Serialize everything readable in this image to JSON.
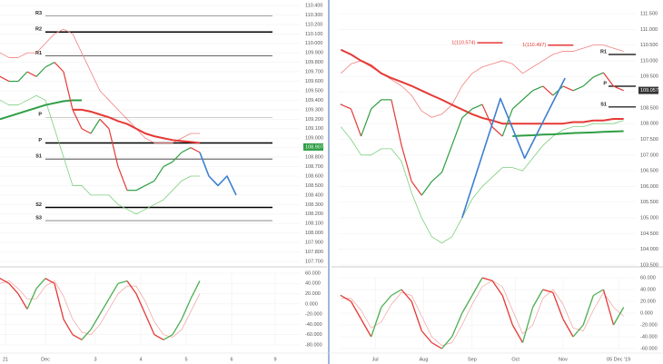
{
  "chart_data": [
    {
      "type": "line",
      "grid": true,
      "xlim": [
        0,
        33
      ],
      "ylim": [
        107.7,
        110.4
      ],
      "yticks": [
        {
          "value": 110.4,
          "label": "110.400"
        },
        {
          "value": 110.3,
          "label": "110.300"
        },
        {
          "value": 110.2,
          "label": "110.200"
        },
        {
          "value": 110.1,
          "label": "110.100"
        },
        {
          "value": 110.0,
          "label": "110.000"
        },
        {
          "value": 109.9,
          "label": "109.900"
        },
        {
          "value": 109.8,
          "label": "109.800"
        },
        {
          "value": 109.7,
          "label": "109.700"
        },
        {
          "value": 109.6,
          "label": "109.600"
        },
        {
          "value": 109.5,
          "label": "109.500"
        },
        {
          "value": 109.4,
          "label": "109.400"
        },
        {
          "value": 109.3,
          "label": "109.300"
        },
        {
          "value": 109.2,
          "label": "109.200"
        },
        {
          "value": 109.1,
          "label": "109.100"
        },
        {
          "value": 109.0,
          "label": "109.000"
        },
        {
          "value": 108.9,
          "label": "108.900"
        },
        {
          "value": 108.8,
          "label": "108.800"
        },
        {
          "value": 108.7,
          "label": "108.700"
        },
        {
          "value": 108.6,
          "label": "108.600"
        },
        {
          "value": 108.5,
          "label": "108.500"
        },
        {
          "value": 108.4,
          "label": "108.400"
        },
        {
          "value": 108.3,
          "label": "108.300"
        },
        {
          "value": 108.2,
          "label": "108.200"
        },
        {
          "value": 108.1,
          "label": "108.100"
        },
        {
          "value": 108.0,
          "label": "108.000"
        },
        {
          "value": 107.9,
          "label": "107.900"
        },
        {
          "value": 107.8,
          "label": "107.800"
        },
        {
          "value": 107.7,
          "label": "107.700"
        }
      ],
      "levels": [
        {
          "label": "R3",
          "value": 110.29,
          "color": "#444",
          "width": 0.6
        },
        {
          "label": "R2",
          "value": 110.12,
          "color": "#000",
          "width": 1.5
        },
        {
          "label": "R1",
          "value": 109.87,
          "color": "#333",
          "width": 0.8
        },
        {
          "label": "P",
          "value": 109.22,
          "color": "#999",
          "width": 0.6
        },
        {
          "label": "P",
          "value": 108.95,
          "color": "#000",
          "width": 1.5
        },
        {
          "label": "S1",
          "value": 108.78,
          "color": "#333",
          "width": 0.8
        },
        {
          "label": "S2",
          "value": 108.27,
          "color": "#000",
          "width": 1.5
        },
        {
          "label": "S3",
          "value": 108.13,
          "color": "#444",
          "width": 0.6
        }
      ],
      "series": [
        {
          "color": "#f08080",
          "width": 0.8,
          "values": [
            109.9,
            109.85,
            109.85,
            109.9,
            109.9,
            110.0,
            110.1,
            110.15,
            110.1,
            109.9,
            109.7,
            109.5,
            109.4,
            109.3,
            109.2,
            109.1,
            109.0,
            108.95,
            108.95,
            108.95,
            109.0,
            109.05,
            109.05
          ]
        },
        {
          "color": "#7ccf7c",
          "width": 0.8,
          "values": [
            109.4,
            109.35,
            109.35,
            109.4,
            109.45,
            109.4,
            109.1,
            108.8,
            108.5,
            108.5,
            108.4,
            108.4,
            108.4,
            108.3,
            108.25,
            108.2,
            108.25,
            108.3,
            108.35,
            108.45,
            108.55,
            108.6,
            108.6
          ]
        },
        {
          "color": "#e53935",
          "width": 2,
          "values": [
            null,
            null,
            null,
            null,
            null,
            null,
            null,
            null,
            109.3,
            109.3,
            109.28,
            109.25,
            109.22,
            109.18,
            109.15,
            109.1,
            109.05,
            109.02,
            109.0,
            108.98,
            108.97,
            108.96,
            108.95
          ]
        },
        {
          "color": "#2e9e44",
          "width": 2,
          "values": [
            109.2,
            109.23,
            109.26,
            109.29,
            109.32,
            109.35,
            109.37,
            109.39,
            109.4,
            109.4
          ]
        },
        {
          "style": "updown",
          "up": "#2e9e44",
          "down": "#e53935",
          "width": 1.2,
          "values": [
            109.65,
            109.6,
            109.6,
            109.7,
            109.65,
            109.75,
            109.8,
            109.7,
            109.3,
            109.1,
            109.05,
            109.2,
            109.1,
            108.7,
            108.45,
            108.45,
            108.5,
            108.55,
            108.7,
            108.75,
            108.85,
            108.9,
            108.85
          ]
        },
        {
          "color": "#3d7fd0",
          "width": 1.6,
          "values": [
            null,
            null,
            null,
            null,
            null,
            null,
            null,
            null,
            null,
            null,
            null,
            null,
            null,
            null,
            null,
            null,
            null,
            null,
            null,
            null,
            null,
            null,
            108.85,
            108.6,
            108.5,
            108.6,
            108.4
          ]
        }
      ],
      "tags": [
        {
          "label": "108.907",
          "value": 108.907,
          "color": "#2e9e44"
        }
      ]
    },
    {
      "type": "line",
      "grid": true,
      "xlim": [
        0,
        33
      ],
      "ylim": [
        -80,
        60
      ],
      "yticks": [
        {
          "value": 60,
          "label": "60.000"
        },
        {
          "value": 40,
          "label": "40.000"
        },
        {
          "value": 20,
          "label": "20.000"
        },
        {
          "value": 0,
          "label": "0.000"
        },
        {
          "value": -20,
          "label": "-20.000"
        },
        {
          "value": -40,
          "label": "-40.000"
        },
        {
          "value": -60,
          "label": "-60.000"
        },
        {
          "value": -80,
          "label": "-80.000"
        }
      ],
      "xticks": [
        {
          "value": 0.6,
          "label": "21"
        },
        {
          "value": 5,
          "label": "Dec"
        },
        {
          "value": 10.5,
          "label": "3"
        },
        {
          "value": 15.5,
          "label": "4"
        },
        {
          "value": 20.5,
          "label": "5"
        },
        {
          "value": 25.5,
          "label": "6"
        },
        {
          "value": 30.3,
          "label": "9"
        }
      ],
      "series": [
        {
          "color": "#f0a0a0",
          "width": 0.7,
          "values": [
            40,
            45,
            30,
            10,
            10,
            35,
            45,
            15,
            -30,
            -55,
            -60,
            -40,
            -10,
            20,
            35,
            35,
            5,
            -35,
            -60,
            -65,
            -50,
            -15,
            20
          ]
        },
        {
          "style": "updown",
          "up": "#4caf50",
          "down": "#e53935",
          "width": 1.3,
          "values": [
            50,
            40,
            20,
            -10,
            30,
            50,
            40,
            -30,
            -60,
            -70,
            -50,
            -20,
            10,
            40,
            45,
            20,
            -20,
            -60,
            -70,
            -60,
            -30,
            10,
            45
          ]
        }
      ]
    },
    {
      "type": "line",
      "grid": true,
      "xlim": [
        -0.3,
        29.2
      ],
      "ylim": [
        103.5,
        111.5
      ],
      "yticks": [
        {
          "value": 111.5,
          "label": "111.500"
        },
        {
          "value": 111,
          "label": "111.000"
        },
        {
          "value": 110.5,
          "label": "110.500"
        },
        {
          "value": 110,
          "label": "110.000"
        },
        {
          "value": 109.5,
          "label": "109.500"
        },
        {
          "value": 109,
          "label": "109.000"
        },
        {
          "value": 108.5,
          "label": "108.500"
        },
        {
          "value": 108,
          "label": "108.000"
        },
        {
          "value": 107.5,
          "label": "107.500"
        },
        {
          "value": 107,
          "label": "107.000"
        },
        {
          "value": 106.5,
          "label": "106.500"
        },
        {
          "value": 106,
          "label": "106.000"
        },
        {
          "value": 105.5,
          "label": "105.500"
        },
        {
          "value": 105,
          "label": "105.000"
        },
        {
          "value": 104.5,
          "label": "104.500"
        },
        {
          "value": 104,
          "label": "104.000"
        },
        {
          "value": 103.5,
          "label": "103.500"
        }
      ],
      "levels": [
        {
          "label": "R1",
          "value": 110.2,
          "color": "#000",
          "width": 1.2
        },
        {
          "label": "P",
          "value": 109.19,
          "color": "#000",
          "width": 1.2
        },
        {
          "label": "S1",
          "value": 108.53,
          "color": "#000",
          "width": 1.2
        }
      ],
      "series": [
        {
          "color": "#f08080",
          "width": 0.8,
          "values": [
            109.6,
            109.9,
            110.0,
            109.8,
            109.6,
            109.4,
            109.2,
            108.9,
            108.4,
            108.2,
            108.3,
            108.6,
            109.2,
            109.6,
            109.8,
            109.9,
            110.0,
            109.9,
            109.6,
            109.8,
            110.0,
            110.2,
            110.3,
            110.3,
            110.4,
            110.5,
            110.5,
            110.4,
            110.3
          ]
        },
        {
          "color": "#7ccf7c",
          "width": 0.8,
          "values": [
            107.9,
            107.5,
            107.0,
            107.0,
            107.2,
            107.2,
            106.8,
            105.8,
            105.0,
            104.4,
            104.2,
            104.4,
            105.0,
            105.6,
            106.0,
            106.3,
            106.6,
            106.6,
            106.5,
            106.9,
            107.3,
            107.6,
            107.8,
            107.9,
            107.9,
            108.0,
            108.0,
            108.0,
            108.1
          ]
        },
        {
          "color": "#e53935",
          "width": 2,
          "values": [
            110.35,
            110.2,
            110.0,
            109.85,
            109.6,
            109.45,
            109.33,
            109.2,
            109.05,
            108.9,
            108.76,
            108.6,
            108.45,
            108.3,
            108.18,
            108.1,
            108.0,
            108.0,
            108.0,
            108.0,
            108.0,
            108.0,
            108.0,
            108.05,
            108.05,
            108.1,
            108.1,
            108.15,
            108.15
          ]
        },
        {
          "color": "#2e9e44",
          "width": 2,
          "values": [
            null,
            null,
            null,
            null,
            null,
            null,
            null,
            null,
            null,
            null,
            null,
            null,
            null,
            null,
            null,
            null,
            null,
            107.6,
            107.62,
            107.63,
            107.65,
            107.66,
            107.68,
            107.7,
            107.71,
            107.72,
            107.74,
            107.75,
            107.76
          ]
        },
        {
          "style": "updown",
          "up": "#2e9e44",
          "down": "#e53935",
          "width": 1.2,
          "values": [
            108.61,
            108.47,
            107.6,
            108.47,
            108.76,
            108.76,
            107.31,
            106.16,
            105.72,
            106.16,
            106.45,
            107.31,
            108.18,
            108.47,
            108.61,
            107.89,
            107.6,
            108.47,
            108.76,
            109.05,
            109.19,
            108.9,
            109.19,
            109.05,
            109.19,
            109.48,
            109.62,
            109.19,
            109.05
          ]
        },
        {
          "color": "#3d7fd0",
          "width": 1.6,
          "x": [
            12,
            15.8,
            18.2,
            22.2
          ],
          "values": [
            105.0,
            108.8,
            106.9,
            109.45
          ]
        }
      ],
      "annotations": [
        {
          "text": "1(110.574)",
          "x": 13.5,
          "y": 110.574
        },
        {
          "text": "1(110.497)",
          "x": 20.5,
          "y": 110.497
        }
      ],
      "tags": [
        {
          "label": "109.057",
          "value": 109.057,
          "color": "#333"
        }
      ]
    },
    {
      "type": "line",
      "grid": true,
      "xlim": [
        -0.3,
        29.2
      ],
      "ylim": [
        -60,
        60
      ],
      "yticks": [
        {
          "value": 60,
          "label": "60.000"
        },
        {
          "value": 40,
          "label": "40.000"
        },
        {
          "value": 20,
          "label": "20.000"
        },
        {
          "value": 0,
          "label": "0.000"
        },
        {
          "value": -20,
          "label": "-20.000"
        },
        {
          "value": -40,
          "label": "-40.000"
        },
        {
          "value": -60,
          "label": "-60.000"
        }
      ],
      "xticks": [
        {
          "value": 3.4,
          "label": "Jul"
        },
        {
          "value": 8.2,
          "label": "Aug"
        },
        {
          "value": 13,
          "label": "Sep"
        },
        {
          "value": 17.3,
          "label": "Oct"
        },
        {
          "value": 22,
          "label": "Nov"
        },
        {
          "value": 27.5,
          "label": "05 Dec '19"
        }
      ],
      "series": [
        {
          "color": "#f0a0a0",
          "width": 0.7,
          "values": [
            25,
            25,
            5,
            -25,
            -15,
            15,
            35,
            30,
            -5,
            -40,
            -55,
            -50,
            -20,
            15,
            45,
            55,
            45,
            5,
            -35,
            -20,
            25,
            40,
            15,
            -25,
            -30,
            5,
            35,
            10,
            -5
          ]
        },
        {
          "style": "updown",
          "up": "#4caf50",
          "down": "#e53935",
          "width": 1.3,
          "values": [
            30,
            20,
            -10,
            -40,
            10,
            30,
            40,
            20,
            -30,
            -50,
            -60,
            -40,
            0,
            30,
            60,
            55,
            30,
            -20,
            -50,
            10,
            40,
            35,
            -10,
            -40,
            -20,
            30,
            40,
            -20,
            10
          ]
        }
      ]
    }
  ]
}
